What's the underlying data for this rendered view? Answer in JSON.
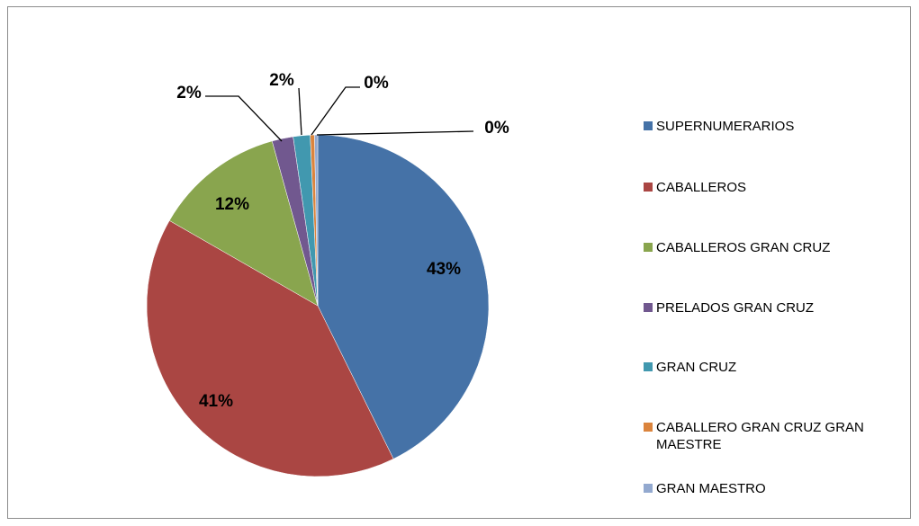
{
  "chart_data": {
    "type": "pie",
    "categories": [
      "SUPERNUMERARIOS",
      "CABALLEROS",
      "CABALLEROS GRAN CRUZ",
      "PRELADOS GRAN CRUZ",
      "GRAN CRUZ",
      "CABALLERO GRAN CRUZ GRAN MAESTRE",
      "GRAN MAESTRO"
    ],
    "values": [
      42.7,
      40.6,
      12.4,
      2.0,
      1.6,
      0.4,
      0.3
    ],
    "value_labels": [
      "43%",
      "41%",
      "12%",
      "2%",
      "2%",
      "0%",
      "0%"
    ],
    "colors": [
      "#4572A7",
      "#AA4643",
      "#89A54E",
      "#71588F",
      "#4198AF",
      "#DB843D",
      "#93A9CF"
    ],
    "legend": "right"
  }
}
